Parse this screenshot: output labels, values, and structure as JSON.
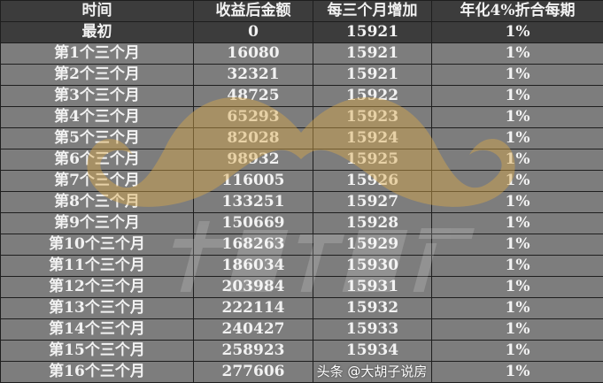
{
  "table": {
    "headers": [
      "时间",
      "收益后金额",
      "每三个月增加",
      "年化4%折合每期"
    ],
    "rows": [
      [
        "最初",
        "0",
        "15921",
        "1%"
      ],
      [
        "第1个三个月",
        "16080",
        "15921",
        "1%"
      ],
      [
        "第2个三个月",
        "32321",
        "15921",
        "1%"
      ],
      [
        "第3个三个月",
        "48725",
        "15922",
        "1%"
      ],
      [
        "第4个三个月",
        "65293",
        "15923",
        "1%"
      ],
      [
        "第5个三个月",
        "82028",
        "15924",
        "1%"
      ],
      [
        "第6个三个月",
        "98932",
        "15925",
        "1%"
      ],
      [
        "第7个三个月",
        "116005",
        "15926",
        "1%"
      ],
      [
        "第8个三个月",
        "133251",
        "15927",
        "1%"
      ],
      [
        "第9个三个月",
        "150669",
        "15928",
        "1%"
      ],
      [
        "第10个三个月",
        "168263",
        "15929",
        "1%"
      ],
      [
        "第11个三个月",
        "186034",
        "15930",
        "1%"
      ],
      [
        "第12个三个月",
        "203984",
        "15931",
        "1%"
      ],
      [
        "第13个三个月",
        "222114",
        "15932",
        "1%"
      ],
      [
        "第14个三个月",
        "240427",
        "15933",
        "1%"
      ],
      [
        "第15个三个月",
        "258923",
        "15934",
        "1%"
      ],
      [
        "第16个三个月",
        "277606",
        "",
        "1%"
      ]
    ]
  },
  "watermark": {
    "center_text": "大胡子说房",
    "footer": "头条 @大胡子说房",
    "mustache_color": "#d9a84a"
  }
}
